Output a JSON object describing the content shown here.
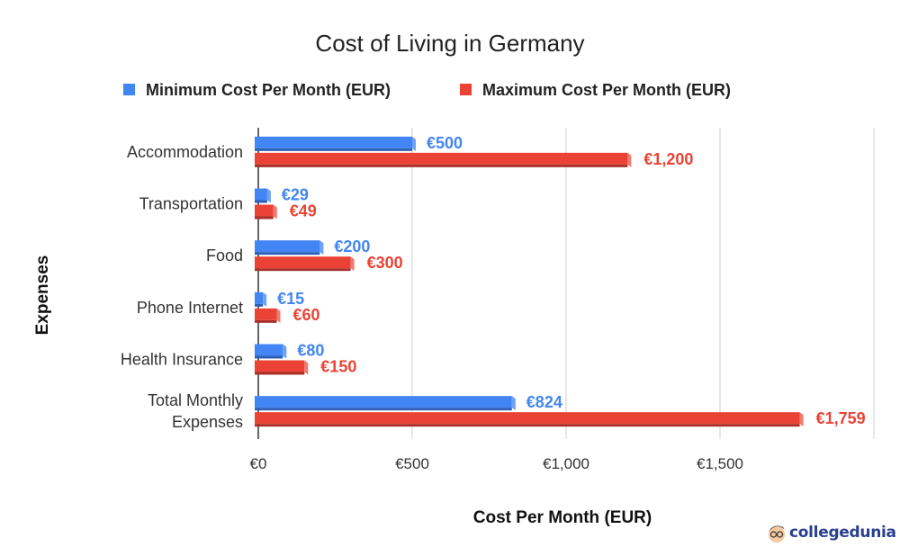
{
  "chart_data": {
    "type": "bar",
    "orientation": "horizontal",
    "title": "Cost of Living in Germany",
    "xlabel": "Cost Per Month (EUR)",
    "ylabel": "Expenses",
    "categories": [
      "Accommodation",
      "Transportation",
      "Food",
      "Phone Internet",
      "Health Insurance",
      "Total Monthly Expenses"
    ],
    "series": [
      {
        "name": "Minimum Cost Per Month (EUR)",
        "color": "#4285f4",
        "values": [
          500,
          29,
          200,
          15,
          80,
          824
        ],
        "labels": [
          "€500",
          "€29",
          "€200",
          "€15",
          "€80",
          "€824"
        ]
      },
      {
        "name": "Maximum Cost Per Month (EUR)",
        "color": "#ea4335",
        "values": [
          1200,
          49,
          300,
          60,
          150,
          1759
        ],
        "labels": [
          "€1,200",
          "€49",
          "€300",
          "€60",
          "€150",
          "€1,759"
        ]
      }
    ],
    "xlim": [
      0,
      2000
    ],
    "xticks": [
      0,
      500,
      1000,
      1500,
      2000
    ],
    "xtick_labels": [
      "€0",
      "€500",
      "€1,000",
      "€1,500",
      ""
    ],
    "grid": true,
    "legend": "top",
    "style": "3d"
  },
  "watermark": {
    "text": "collegedunia"
  }
}
